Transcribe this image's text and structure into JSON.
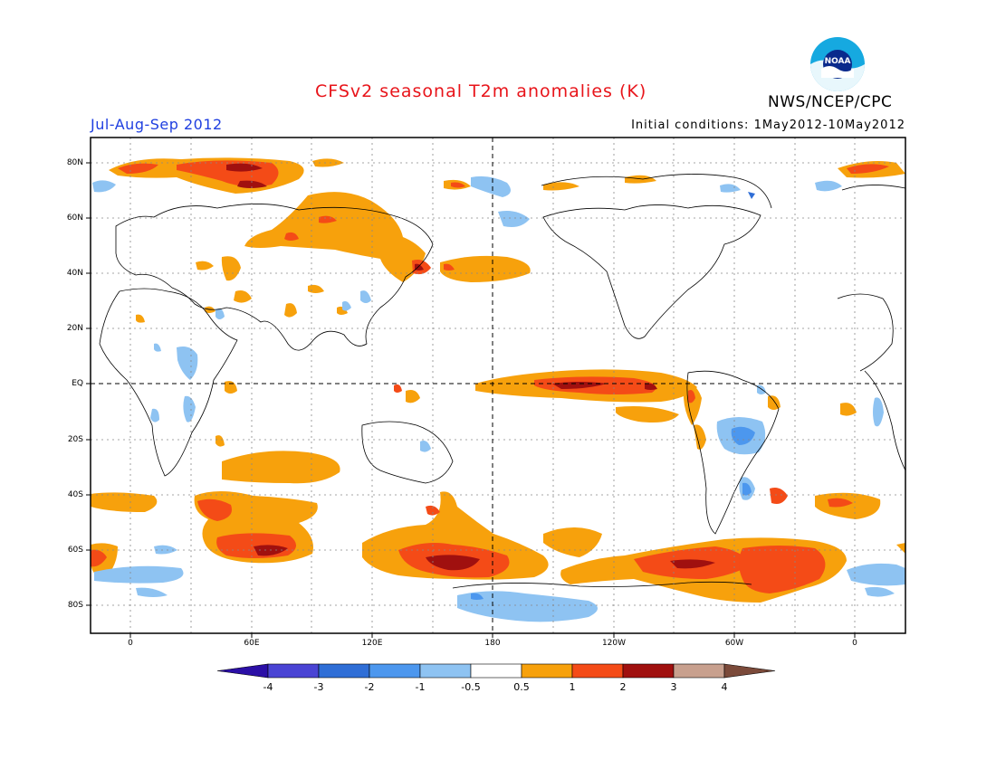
{
  "header": {
    "title": "CFSv2 seasonal T2m anomalies (K)",
    "season": "Jul-Aug-Sep 2012",
    "initial_conditions": "Initial conditions: 1May2012-10May2012",
    "agency": "NWS/NCEP/CPC",
    "logo_text": "NOAA"
  },
  "axes": {
    "lat_labels": [
      "80N",
      "60N",
      "40N",
      "20N",
      "EQ",
      "20S",
      "40S",
      "60S",
      "80S"
    ],
    "lon_labels": [
      "0",
      "60E",
      "120E",
      "180",
      "120W",
      "60W",
      "0"
    ]
  },
  "colorbar": {
    "labels": [
      "-4",
      "-3",
      "-2",
      "-1",
      "-0.5",
      "0.5",
      "1",
      "2",
      "3",
      "4"
    ],
    "colors": [
      "#2b0fa6",
      "#4a44d4",
      "#2f6ed6",
      "#4c97ee",
      "#8ec3f2",
      "#ffffff",
      "#f7a10c",
      "#f44b17",
      "#a0100f",
      "#c8a08e",
      "#7b4a3a"
    ]
  },
  "colors": {
    "warm1": "#f7a10c",
    "warm2": "#f44b17",
    "warm3": "#a0100f",
    "cool1": "#8ec3f2",
    "cool2": "#4c97ee",
    "cool3": "#2f6ed6"
  }
}
